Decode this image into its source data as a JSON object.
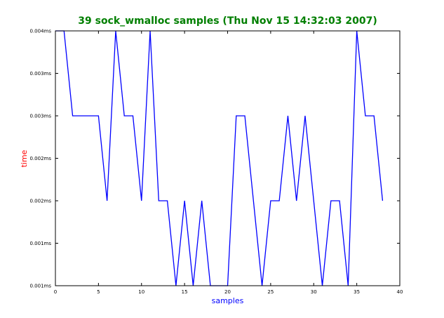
{
  "chart_data": {
    "type": "line",
    "title": "39 sock_wmalloc samples (Thu Nov 15 14:32:03 2007)",
    "xlabel": "samples",
    "ylabel": "time",
    "xlim": [
      0,
      40
    ],
    "ylim": [
      0,
      6
    ],
    "grid": false,
    "xticks": [
      {
        "value": 0,
        "label": "0"
      },
      {
        "value": 5,
        "label": "5"
      },
      {
        "value": 10,
        "label": "10"
      },
      {
        "value": 15,
        "label": "15"
      },
      {
        "value": 20,
        "label": "20"
      },
      {
        "value": 25,
        "label": "25"
      },
      {
        "value": 30,
        "label": "30"
      },
      {
        "value": 35,
        "label": "35"
      },
      {
        "value": 40,
        "label": "40"
      }
    ],
    "yticks": [
      {
        "value": 0,
        "label": "0.001ms"
      },
      {
        "value": 1,
        "label": "0.001ms"
      },
      {
        "value": 2,
        "label": "0.002ms"
      },
      {
        "value": 3,
        "label": "0.002ms"
      },
      {
        "value": 4,
        "label": "0.003ms"
      },
      {
        "value": 5,
        "label": "0.003ms"
      },
      {
        "value": 6,
        "label": "0.004ms"
      }
    ],
    "series": [
      {
        "x": [
          0,
          1,
          2,
          3,
          4,
          5,
          6,
          7,
          8,
          9,
          10,
          11,
          12,
          13,
          14,
          15,
          16,
          17,
          18,
          19,
          20,
          21,
          22,
          23,
          24,
          25,
          26,
          27,
          28,
          29,
          30,
          31,
          32,
          33,
          34,
          35,
          36,
          37,
          38
        ],
        "values": [
          6,
          6,
          4,
          4,
          4,
          4,
          2,
          6,
          4,
          4,
          2,
          6,
          2,
          2,
          0,
          2,
          0,
          2,
          0,
          0,
          0,
          4,
          4,
          2,
          0,
          2,
          2,
          4,
          2,
          4,
          2,
          0,
          2,
          2,
          0,
          6,
          4,
          4,
          2
        ]
      }
    ],
    "colors": {
      "line": "#0000ff",
      "title": "#007f00",
      "xlabel": "#0000ff",
      "ylabel": "#ff0000",
      "axes": "#000000"
    }
  }
}
